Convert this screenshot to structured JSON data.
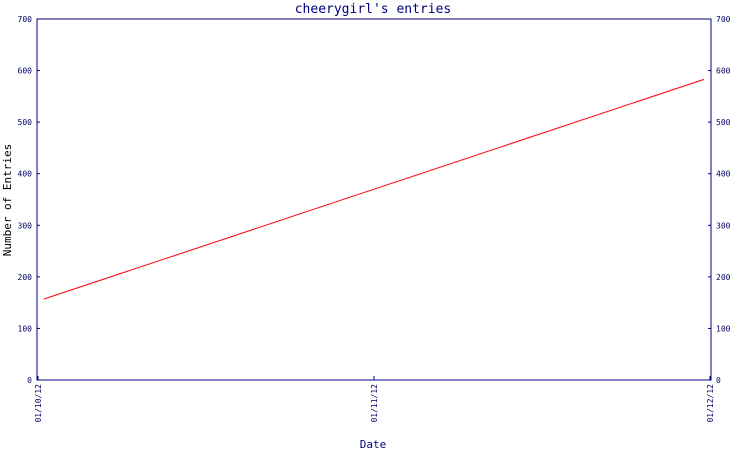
{
  "chart_data": {
    "type": "line",
    "title": "cheerygirl's entries",
    "xlabel": "Date",
    "ylabel": "Number of Entries",
    "x": [
      "01/10/12",
      "01/11/12",
      "01/12/12"
    ],
    "series": [
      {
        "values": [
          157,
          370,
          583
        ]
      }
    ],
    "ylim": [
      0,
      700
    ],
    "yticks": [
      0,
      100,
      200,
      300,
      400,
      500,
      600,
      700
    ],
    "grid": false,
    "legend": "none",
    "colors": {
      "line": "#ff0000",
      "axis": "#000080",
      "ticks": "#000066"
    }
  }
}
